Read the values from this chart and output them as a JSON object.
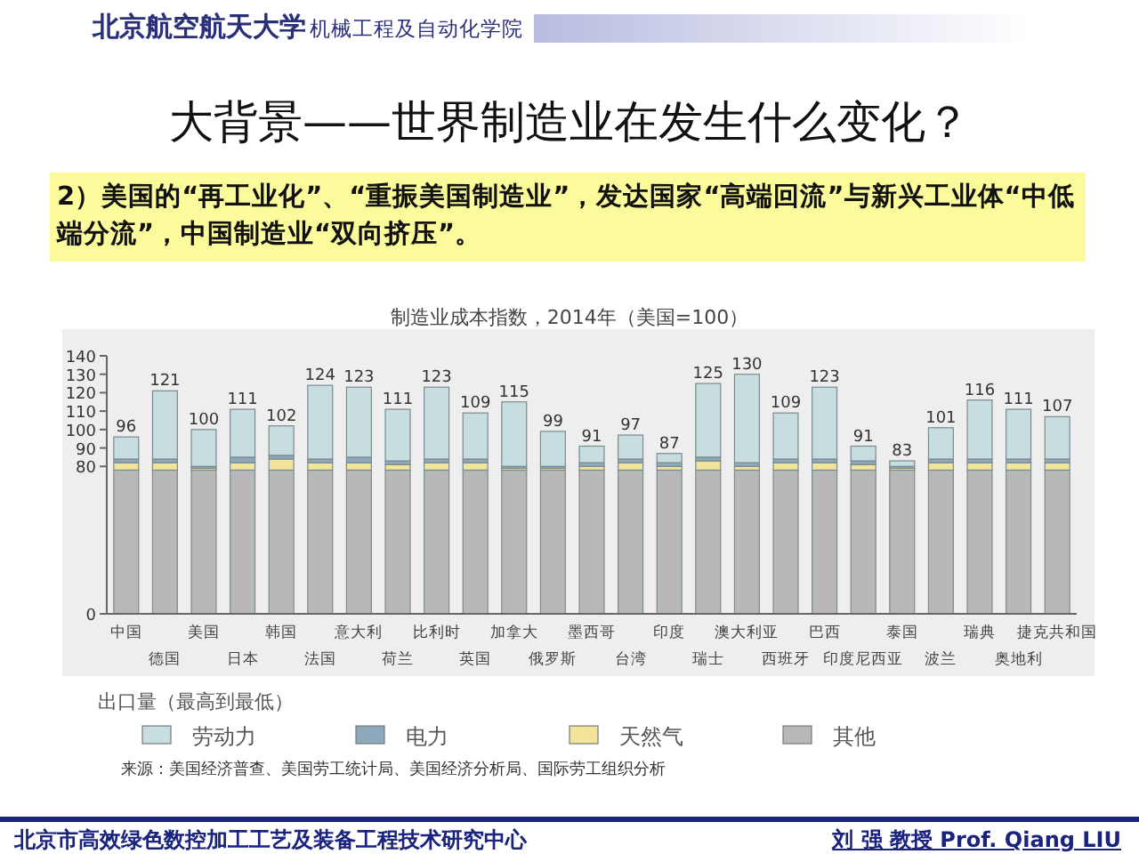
{
  "chart_data": {
    "type": "bar",
    "stacked": true,
    "title": "制造业成本指数，2014年（美国=100）",
    "subtitle": "2）美国的“再工业化”、“重振美国制造业”，发达国家“高端回流”与新兴工业体“中低端分流”，中国制造业“双向挤压”。",
    "xlabel": "出口量（最高到最低）",
    "categories": [
      "中国",
      "德国",
      "美国",
      "日本",
      "韩国",
      "法国",
      "意大利",
      "荷兰",
      "比利时",
      "英国",
      "加拿大",
      "俄罗斯",
      "墨西哥",
      "台湾",
      "印度",
      "瑞士",
      "澳大利亚",
      "西班牙",
      "巴西",
      "印度尼西亚",
      "泰国",
      "波兰",
      "瑞典",
      "奥地利",
      "捷克共和国"
    ],
    "series": [
      {
        "name": "其他",
        "color": "#b8b8b8",
        "values": [
          78,
          78,
          78,
          78,
          78,
          78,
          78,
          78,
          78,
          78,
          78,
          78,
          78,
          78,
          78,
          78,
          78,
          78,
          78,
          78,
          78,
          78,
          78,
          78,
          78
        ]
      },
      {
        "name": "天然气",
        "color": "#f2e49a",
        "values": [
          4,
          4,
          1,
          4,
          6,
          4,
          4,
          3,
          4,
          4,
          1,
          1,
          2,
          4,
          2,
          5,
          2,
          4,
          4,
          3,
          1,
          4,
          4,
          4,
          4
        ]
      },
      {
        "name": "电力",
        "color": "#8fa9bc",
        "values": [
          2,
          2,
          1,
          3,
          2,
          2,
          3,
          2,
          2,
          2,
          1,
          1,
          2,
          2,
          2,
          2,
          2,
          2,
          2,
          2,
          1,
          2,
          2,
          2,
          2
        ]
      },
      {
        "name": "劳动力",
        "color": "#c8dde0",
        "values": [
          12,
          37,
          20,
          26,
          16,
          40,
          38,
          28,
          39,
          25,
          35,
          19,
          9,
          13,
          5,
          40,
          48,
          25,
          39,
          8,
          3,
          17,
          32,
          27,
          23
        ]
      }
    ],
    "totals": [
      "96",
      "121",
      "100",
      "111",
      "102",
      "124",
      "123",
      "111",
      "123",
      "109",
      "115",
      "99",
      "91",
      "97",
      "87",
      "125",
      "130",
      "109",
      "123",
      "91",
      "83",
      "101",
      "116",
      "111",
      "107"
    ],
    "ylim": [
      0,
      140
    ],
    "yticks": [
      0,
      80,
      90,
      100,
      110,
      120,
      130,
      140
    ],
    "legend": "bottom",
    "annotations": [
      "来源：美国经济普查、美国劳工统计局、美国经济分析局、国际劳工组织分析",
      "大背景——世界制造业在发生什么变化？",
      "北京航空航天大学",
      "机械工程及自动化学院",
      "北京市高效绿色数控加工工艺及装备工程技术研究中心",
      "刘 强 教授 Prof. Qiang LIU"
    ]
  }
}
